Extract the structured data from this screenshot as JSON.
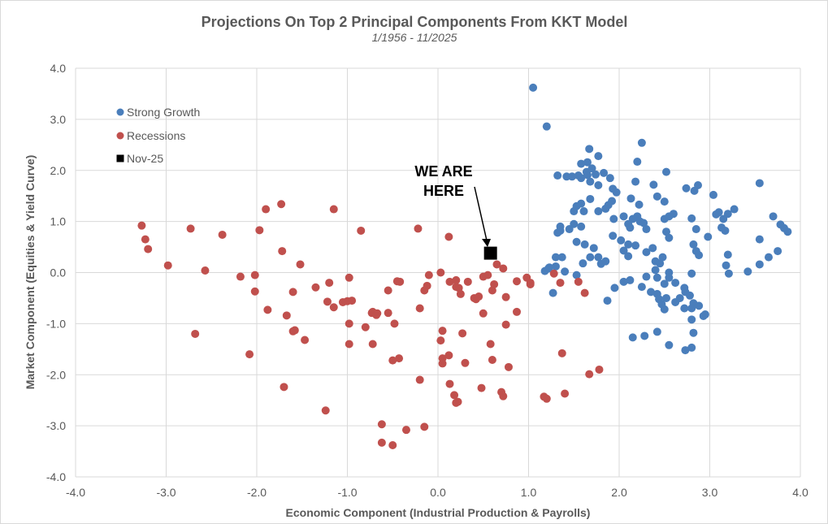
{
  "chart_data": {
    "type": "scatter",
    "title": "Projections On Top 2 Principal Components From KKT Model",
    "subtitle": "1/1956 - 11/2025",
    "xlabel": "Economic Component (Industrial Production & Payrolls)",
    "ylabel": "Market Component (Equities & Yield Curve)",
    "xlim": [
      -4,
      4
    ],
    "ylim": [
      -4,
      4
    ],
    "xticks": [
      "-4.0",
      "-3.0",
      "-2.0",
      "-1.0",
      "0.0",
      "1.0",
      "2.0",
      "3.0",
      "4.0"
    ],
    "yticks": [
      "4.0",
      "3.0",
      "2.0",
      "1.0",
      "0.0",
      "-1.0",
      "-2.0",
      "-3.0",
      "-4.0"
    ],
    "grid": true,
    "legend_position": "top-left",
    "annotation": {
      "lines": [
        "WE ARE",
        "HERE"
      ],
      "points_to": "Nov-25"
    },
    "series": [
      {
        "name": "Strong Growth",
        "color": "#4a7ebb",
        "marker": "circle",
        "points": [
          [
            1.05,
            3.62
          ],
          [
            1.2,
            2.86
          ],
          [
            2.25,
            2.54
          ],
          [
            1.67,
            2.42
          ],
          [
            1.77,
            2.28
          ],
          [
            2.2,
            2.17
          ],
          [
            1.65,
            2.16
          ],
          [
            1.58,
            2.13
          ],
          [
            1.7,
            2.04
          ],
          [
            1.64,
            1.97
          ],
          [
            2.52,
            1.97
          ],
          [
            1.83,
            1.95
          ],
          [
            1.74,
            1.92
          ],
          [
            1.65,
            1.91
          ],
          [
            1.55,
            1.9
          ],
          [
            1.48,
            1.88
          ],
          [
            1.42,
            1.88
          ],
          [
            1.32,
            1.9
          ],
          [
            1.58,
            1.85
          ],
          [
            1.9,
            1.85
          ],
          [
            1.68,
            1.78
          ],
          [
            1.77,
            1.71
          ],
          [
            2.18,
            1.78
          ],
          [
            2.87,
            1.71
          ],
          [
            2.74,
            1.65
          ],
          [
            2.83,
            1.6
          ],
          [
            2.38,
            1.72
          ],
          [
            1.93,
            1.64
          ],
          [
            1.97,
            1.57
          ],
          [
            3.04,
            1.52
          ],
          [
            2.13,
            1.45
          ],
          [
            1.92,
            1.4
          ],
          [
            1.68,
            1.44
          ],
          [
            1.58,
            1.35
          ],
          [
            1.88,
            1.32
          ],
          [
            2.22,
            1.33
          ],
          [
            2.42,
            1.49
          ],
          [
            2.5,
            1.39
          ],
          [
            3.55,
            1.75
          ],
          [
            1.5,
            1.2
          ],
          [
            1.77,
            1.2
          ],
          [
            1.61,
            1.2
          ],
          [
            1.53,
            1.3
          ],
          [
            1.85,
            1.25
          ],
          [
            1.94,
            1.05
          ],
          [
            2.05,
            1.1
          ],
          [
            2.15,
            1.05
          ],
          [
            2.2,
            1.1
          ],
          [
            2.23,
            1.0
          ],
          [
            2.27,
            0.97
          ],
          [
            2.1,
            0.95
          ],
          [
            2.12,
            0.88
          ],
          [
            2.3,
            0.85
          ],
          [
            2.5,
            1.05
          ],
          [
            2.55,
            1.1
          ],
          [
            2.6,
            1.15
          ],
          [
            3.07,
            1.14
          ],
          [
            3.1,
            1.18
          ],
          [
            3.15,
            1.05
          ],
          [
            3.2,
            1.15
          ],
          [
            3.27,
            1.24
          ],
          [
            3.13,
            0.88
          ],
          [
            3.17,
            0.82
          ],
          [
            3.7,
            1.1
          ],
          [
            3.78,
            0.94
          ],
          [
            3.82,
            0.87
          ],
          [
            3.86,
            0.8
          ],
          [
            1.35,
            0.9
          ],
          [
            1.32,
            0.78
          ],
          [
            1.35,
            0.82
          ],
          [
            1.45,
            0.85
          ],
          [
            1.5,
            0.95
          ],
          [
            1.58,
            0.9
          ],
          [
            1.53,
            0.6
          ],
          [
            1.62,
            0.55
          ],
          [
            1.93,
            0.72
          ],
          [
            2.02,
            0.63
          ],
          [
            2.1,
            0.55
          ],
          [
            2.3,
            0.4
          ],
          [
            2.37,
            0.48
          ],
          [
            2.52,
            0.8
          ],
          [
            2.55,
            0.68
          ],
          [
            2.8,
            1.06
          ],
          [
            2.85,
            0.85
          ],
          [
            2.82,
            0.55
          ],
          [
            2.85,
            0.42
          ],
          [
            2.88,
            0.34
          ],
          [
            2.98,
            0.7
          ],
          [
            3.55,
            0.65
          ],
          [
            3.65,
            0.3
          ],
          [
            3.2,
            0.35
          ],
          [
            3.18,
            0.14
          ],
          [
            3.21,
            -0.02
          ],
          [
            3.55,
            0.16
          ],
          [
            3.75,
            0.42
          ],
          [
            3.42,
            0.02
          ],
          [
            1.3,
            0.3
          ],
          [
            1.37,
            0.3
          ],
          [
            1.68,
            0.3
          ],
          [
            1.77,
            0.3
          ],
          [
            1.72,
            0.48
          ],
          [
            1.8,
            0.17
          ],
          [
            1.6,
            0.18
          ],
          [
            1.85,
            0.22
          ],
          [
            2.05,
            0.43
          ],
          [
            2.1,
            0.32
          ],
          [
            2.18,
            0.53
          ],
          [
            2.4,
            0.22
          ],
          [
            2.45,
            0.18
          ],
          [
            2.4,
            0.05
          ],
          [
            2.48,
            0.3
          ],
          [
            2.55,
            0.0
          ],
          [
            2.42,
            -0.1
          ],
          [
            2.3,
            -0.08
          ],
          [
            1.18,
            0.03
          ],
          [
            1.22,
            0.08
          ],
          [
            1.23,
            0.1
          ],
          [
            1.3,
            0.12
          ],
          [
            1.4,
            0.02
          ],
          [
            1.27,
            -0.4
          ],
          [
            1.53,
            -0.05
          ],
          [
            2.8,
            -0.02
          ],
          [
            2.25,
            -0.28
          ],
          [
            2.12,
            -0.15
          ],
          [
            2.05,
            -0.18
          ],
          [
            2.35,
            -0.38
          ],
          [
            2.42,
            -0.42
          ],
          [
            2.5,
            -0.22
          ],
          [
            2.55,
            -0.1
          ],
          [
            2.62,
            -0.2
          ],
          [
            2.44,
            -0.52
          ],
          [
            2.52,
            -0.5
          ],
          [
            2.47,
            -0.62
          ],
          [
            2.5,
            -0.72
          ],
          [
            2.62,
            -0.58
          ],
          [
            2.67,
            -0.5
          ],
          [
            2.72,
            -0.3
          ],
          [
            2.73,
            -0.38
          ],
          [
            2.78,
            -0.45
          ],
          [
            2.82,
            -0.6
          ],
          [
            2.8,
            -0.7
          ],
          [
            2.72,
            -0.7
          ],
          [
            2.88,
            -0.65
          ],
          [
            2.95,
            -0.82
          ],
          [
            2.93,
            -0.85
          ],
          [
            1.95,
            -0.3
          ],
          [
            1.87,
            -0.55
          ],
          [
            2.8,
            -0.92
          ],
          [
            2.82,
            -1.18
          ],
          [
            2.73,
            -1.52
          ],
          [
            2.8,
            -1.47
          ],
          [
            2.42,
            -1.16
          ],
          [
            2.55,
            -1.42
          ],
          [
            2.15,
            -1.27
          ],
          [
            2.28,
            -1.24
          ]
        ]
      },
      {
        "name": "Recessions",
        "color": "#c0504d",
        "marker": "circle",
        "points": [
          [
            -3.27,
            0.92
          ],
          [
            -3.23,
            0.65
          ],
          [
            -3.2,
            0.46
          ],
          [
            -2.98,
            0.14
          ],
          [
            -2.73,
            0.86
          ],
          [
            -2.38,
            0.74
          ],
          [
            -2.57,
            0.04
          ],
          [
            -2.68,
            -1.2
          ],
          [
            -1.73,
            1.34
          ],
          [
            -1.9,
            1.24
          ],
          [
            -1.15,
            1.24
          ],
          [
            -1.97,
            0.83
          ],
          [
            -0.85,
            0.82
          ],
          [
            -1.72,
            0.42
          ],
          [
            -1.52,
            0.16
          ],
          [
            -2.18,
            -0.08
          ],
          [
            -2.02,
            -0.05
          ],
          [
            -2.02,
            -0.37
          ],
          [
            -1.6,
            -0.38
          ],
          [
            -1.88,
            -0.73
          ],
          [
            -1.67,
            -0.84
          ],
          [
            -1.58,
            -1.13
          ],
          [
            -1.6,
            -1.15
          ],
          [
            -1.47,
            -1.32
          ],
          [
            -1.7,
            -2.24
          ],
          [
            -2.08,
            -1.6
          ],
          [
            -1.35,
            -0.29
          ],
          [
            -1.2,
            -0.2
          ],
          [
            -0.98,
            -0.1
          ],
          [
            -1.22,
            -0.57
          ],
          [
            -1.15,
            -0.68
          ],
          [
            -1.05,
            -0.58
          ],
          [
            -1.0,
            -0.56
          ],
          [
            -0.95,
            -0.55
          ],
          [
            -0.8,
            -1.07
          ],
          [
            -0.98,
            -1.0
          ],
          [
            -0.98,
            -1.4
          ],
          [
            -0.73,
            -0.79
          ],
          [
            -0.72,
            -0.77
          ],
          [
            -0.67,
            -0.8
          ],
          [
            -0.68,
            -0.83
          ],
          [
            -0.55,
            -0.79
          ],
          [
            -0.72,
            -1.4
          ],
          [
            -0.48,
            -1.0
          ],
          [
            -0.45,
            -0.17
          ],
          [
            -0.42,
            -0.18
          ],
          [
            -0.55,
            -0.35
          ],
          [
            -0.2,
            -0.7
          ],
          [
            -0.15,
            -0.35
          ],
          [
            -0.12,
            -0.26
          ],
          [
            -0.1,
            -0.05
          ],
          [
            0.03,
            0.0
          ],
          [
            0.13,
            -0.18
          ],
          [
            0.2,
            -0.15
          ],
          [
            -0.22,
            0.86
          ],
          [
            0.12,
            0.7
          ],
          [
            0.33,
            -0.18
          ],
          [
            0.4,
            -0.5
          ],
          [
            0.42,
            -0.52
          ],
          [
            0.45,
            -0.47
          ],
          [
            0.5,
            -0.08
          ],
          [
            0.6,
            -0.35
          ],
          [
            0.62,
            -0.23
          ],
          [
            0.65,
            0.16
          ],
          [
            0.72,
            0.08
          ],
          [
            0.75,
            -0.48
          ],
          [
            0.87,
            -0.77
          ],
          [
            0.98,
            -0.1
          ],
          [
            1.02,
            -0.2
          ],
          [
            1.02,
            -0.23
          ],
          [
            0.55,
            -0.05
          ],
          [
            0.5,
            -0.8
          ],
          [
            0.23,
            -0.3
          ],
          [
            0.25,
            -0.42
          ],
          [
            0.2,
            -0.28
          ],
          [
            0.05,
            -1.14
          ],
          [
            0.03,
            -1.33
          ],
          [
            0.12,
            -1.62
          ],
          [
            0.05,
            -1.68
          ],
          [
            0.05,
            -1.78
          ],
          [
            0.27,
            -1.19
          ],
          [
            0.3,
            -1.77
          ],
          [
            0.48,
            -2.26
          ],
          [
            0.58,
            -1.4
          ],
          [
            0.6,
            -1.71
          ],
          [
            0.75,
            -1.02
          ],
          [
            0.78,
            -1.85
          ],
          [
            0.7,
            -2.34
          ],
          [
            0.72,
            -2.42
          ],
          [
            0.13,
            -2.18
          ],
          [
            0.18,
            -2.4
          ],
          [
            0.2,
            -2.55
          ],
          [
            0.22,
            -2.53
          ],
          [
            -0.2,
            -2.1
          ],
          [
            -0.5,
            -1.72
          ],
          [
            -0.43,
            -1.68
          ],
          [
            -0.15,
            -3.02
          ],
          [
            -0.35,
            -3.08
          ],
          [
            -0.5,
            -3.38
          ],
          [
            -0.62,
            -2.97
          ],
          [
            -0.62,
            -3.33
          ],
          [
            -1.24,
            -2.7
          ],
          [
            1.17,
            -2.43
          ],
          [
            1.2,
            -2.47
          ],
          [
            1.35,
            -0.2
          ],
          [
            1.28,
            -0.02
          ],
          [
            1.4,
            -2.37
          ],
          [
            1.37,
            -1.58
          ],
          [
            1.67,
            -1.99
          ],
          [
            1.78,
            -1.9
          ],
          [
            1.55,
            -0.18
          ],
          [
            1.62,
            -0.4
          ],
          [
            0.87,
            -0.17
          ]
        ]
      },
      {
        "name": "Nov-25",
        "color": "#000000",
        "marker": "square",
        "points": [
          [
            0.58,
            0.38
          ]
        ]
      }
    ]
  }
}
